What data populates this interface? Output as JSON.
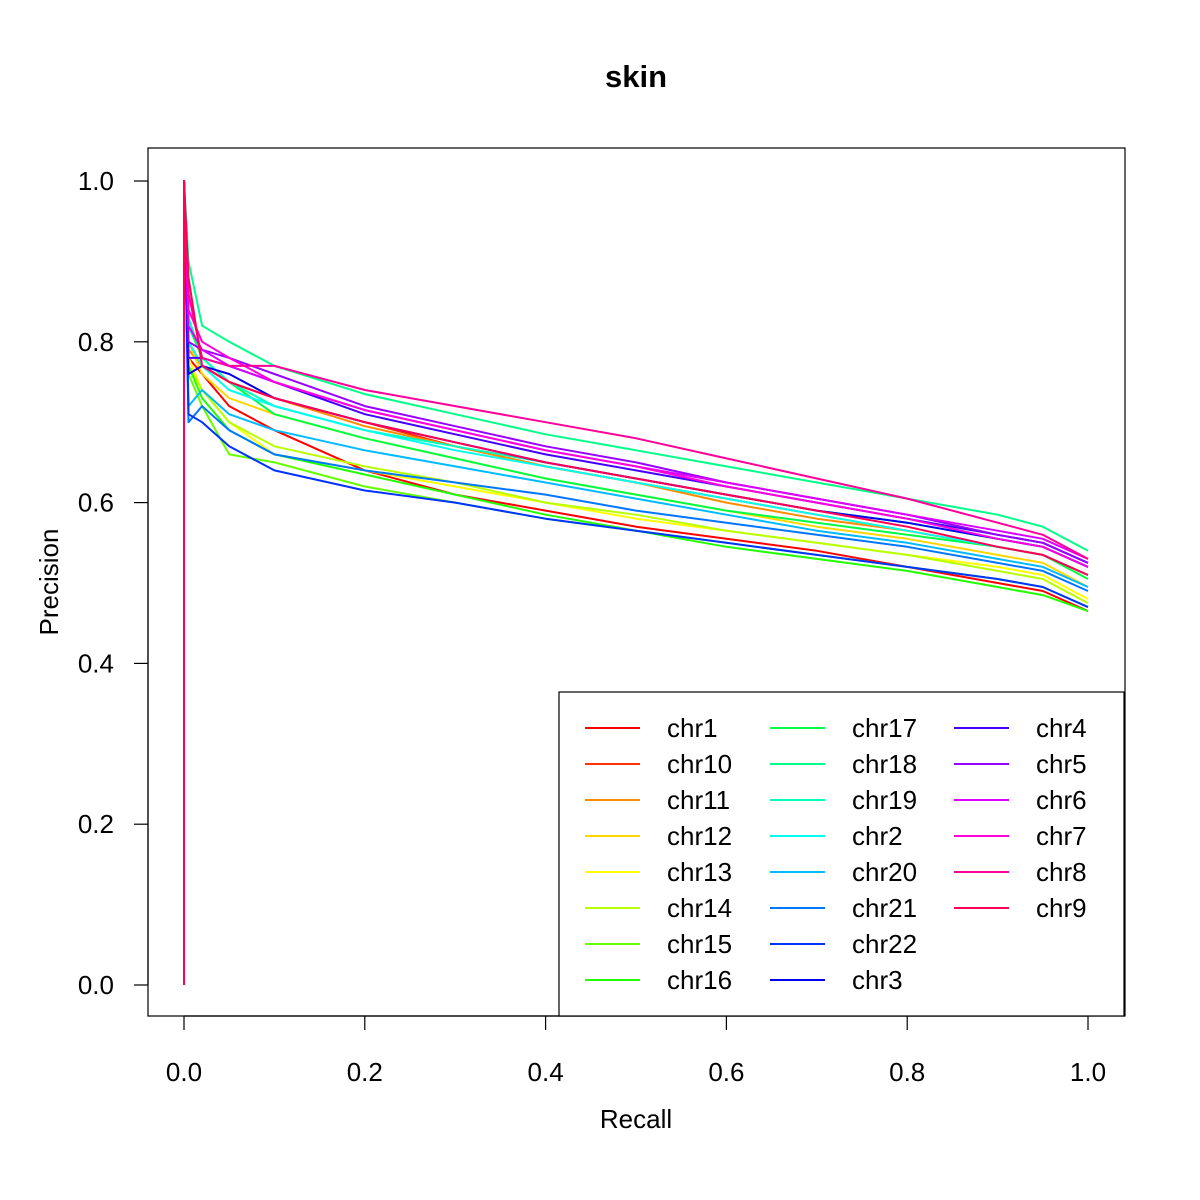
{
  "chart_data": {
    "type": "line",
    "title": "skin",
    "xlabel": "Recall",
    "ylabel": "Precision",
    "xlim": [
      0,
      1
    ],
    "ylim": [
      0,
      1
    ],
    "x_ticks": [
      "0.0",
      "0.2",
      "0.4",
      "0.6",
      "0.8",
      "1.0"
    ],
    "y_ticks": [
      "0.0",
      "0.2",
      "0.4",
      "0.6",
      "0.8",
      "1.0"
    ],
    "grid": false,
    "legend_position": "bottom-right",
    "x": [
      0.0,
      0.005,
      0.02,
      0.05,
      0.1,
      0.2,
      0.3,
      0.4,
      0.5,
      0.6,
      0.7,
      0.8,
      0.9,
      0.95,
      1.0
    ],
    "series": [
      {
        "name": "chr1",
        "color": "#FF0000",
        "values": [
          0.0,
          0.78,
          0.76,
          0.72,
          0.69,
          0.64,
          0.61,
          0.59,
          0.57,
          0.555,
          0.54,
          0.52,
          0.5,
          0.49,
          0.465
        ]
      },
      {
        "name": "chr10",
        "color": "#FF3300",
        "values": [
          0.0,
          0.8,
          0.77,
          0.75,
          0.73,
          0.7,
          0.67,
          0.645,
          0.625,
          0.605,
          0.585,
          0.565,
          0.545,
          0.535,
          0.51
        ]
      },
      {
        "name": "chr11",
        "color": "#FF8C00",
        "values": [
          0.0,
          0.79,
          0.77,
          0.75,
          0.73,
          0.695,
          0.67,
          0.645,
          0.625,
          0.6,
          0.58,
          0.565,
          0.545,
          0.535,
          0.51
        ]
      },
      {
        "name": "chr12",
        "color": "#FFD700",
        "values": [
          0.0,
          0.8,
          0.76,
          0.73,
          0.71,
          0.68,
          0.655,
          0.63,
          0.61,
          0.59,
          0.57,
          0.555,
          0.535,
          0.525,
          0.495
        ]
      },
      {
        "name": "chr13",
        "color": "#FFFF00",
        "values": [
          0.0,
          0.78,
          0.74,
          0.7,
          0.66,
          0.64,
          0.62,
          0.6,
          0.58,
          0.565,
          0.55,
          0.535,
          0.52,
          0.51,
          0.48
        ]
      },
      {
        "name": "chr14",
        "color": "#B8FF00",
        "values": [
          0.0,
          0.77,
          0.74,
          0.7,
          0.67,
          0.645,
          0.625,
          0.6,
          0.585,
          0.565,
          0.55,
          0.535,
          0.515,
          0.505,
          0.475
        ]
      },
      {
        "name": "chr15",
        "color": "#66FF00",
        "values": [
          0.0,
          0.76,
          0.72,
          0.66,
          0.65,
          0.62,
          0.6,
          0.58,
          0.565,
          0.55,
          0.535,
          0.52,
          0.505,
          0.495,
          0.47
        ]
      },
      {
        "name": "chr16",
        "color": "#22FF00",
        "values": [
          0.0,
          0.77,
          0.73,
          0.69,
          0.66,
          0.635,
          0.61,
          0.585,
          0.565,
          0.545,
          0.53,
          0.515,
          0.495,
          0.485,
          0.465
        ]
      },
      {
        "name": "chr17",
        "color": "#00FF44",
        "values": [
          0.0,
          0.82,
          0.78,
          0.75,
          0.71,
          0.68,
          0.655,
          0.63,
          0.61,
          0.59,
          0.575,
          0.56,
          0.545,
          0.535,
          0.505
        ]
      },
      {
        "name": "chr18",
        "color": "#00FF88",
        "values": [
          0.0,
          0.9,
          0.82,
          0.8,
          0.77,
          0.735,
          0.71,
          0.685,
          0.665,
          0.645,
          0.625,
          0.605,
          0.585,
          0.57,
          0.54
        ]
      },
      {
        "name": "chr19",
        "color": "#00FFBB",
        "values": [
          0.0,
          0.83,
          0.78,
          0.75,
          0.72,
          0.69,
          0.67,
          0.65,
          0.63,
          0.61,
          0.59,
          0.575,
          0.555,
          0.545,
          0.52
        ]
      },
      {
        "name": "chr2",
        "color": "#00FFEE",
        "values": [
          0.0,
          0.8,
          0.77,
          0.74,
          0.72,
          0.69,
          0.665,
          0.645,
          0.625,
          0.605,
          0.585,
          0.565,
          0.545,
          0.535,
          0.51
        ]
      },
      {
        "name": "chr20",
        "color": "#00BBFF",
        "values": [
          0.0,
          0.72,
          0.74,
          0.71,
          0.69,
          0.665,
          0.645,
          0.625,
          0.605,
          0.585,
          0.565,
          0.55,
          0.53,
          0.52,
          0.495
        ]
      },
      {
        "name": "chr21",
        "color": "#0077FF",
        "values": [
          0.0,
          0.7,
          0.72,
          0.69,
          0.66,
          0.64,
          0.625,
          0.61,
          0.59,
          0.575,
          0.56,
          0.545,
          0.525,
          0.515,
          0.49
        ]
      },
      {
        "name": "chr22",
        "color": "#0033FF",
        "values": [
          0.0,
          0.71,
          0.7,
          0.67,
          0.64,
          0.615,
          0.6,
          0.58,
          0.565,
          0.55,
          0.535,
          0.52,
          0.505,
          0.495,
          0.47
        ]
      },
      {
        "name": "chr3",
        "color": "#0000EE",
        "values": [
          0.0,
          0.76,
          0.77,
          0.76,
          0.73,
          0.7,
          0.675,
          0.65,
          0.63,
          0.61,
          0.59,
          0.575,
          0.555,
          0.545,
          0.52
        ]
      },
      {
        "name": "chr4",
        "color": "#4400FF",
        "values": [
          0.0,
          0.78,
          0.78,
          0.77,
          0.75,
          0.71,
          0.685,
          0.66,
          0.64,
          0.62,
          0.6,
          0.58,
          0.56,
          0.55,
          0.525
        ]
      },
      {
        "name": "chr5",
        "color": "#9900FF",
        "values": [
          0.0,
          0.8,
          0.79,
          0.78,
          0.76,
          0.72,
          0.695,
          0.67,
          0.65,
          0.625,
          0.605,
          0.585,
          0.56,
          0.55,
          0.525
        ]
      },
      {
        "name": "chr6",
        "color": "#DD00FF",
        "values": [
          0.0,
          0.82,
          0.79,
          0.77,
          0.75,
          0.715,
          0.69,
          0.665,
          0.645,
          0.625,
          0.605,
          0.585,
          0.565,
          0.555,
          0.53
        ]
      },
      {
        "name": "chr7",
        "color": "#FF00DD",
        "values": [
          0.0,
          0.84,
          0.8,
          0.78,
          0.75,
          0.715,
          0.69,
          0.665,
          0.645,
          0.62,
          0.6,
          0.58,
          0.555,
          0.545,
          0.52
        ]
      },
      {
        "name": "chr8",
        "color": "#FF0099",
        "values": [
          0.0,
          0.86,
          0.78,
          0.77,
          0.77,
          0.74,
          0.72,
          0.7,
          0.68,
          0.655,
          0.63,
          0.605,
          0.575,
          0.56,
          0.53
        ]
      },
      {
        "name": "chr9",
        "color": "#FF0055",
        "values": [
          0.0,
          0.88,
          0.77,
          0.75,
          0.73,
          0.7,
          0.675,
          0.65,
          0.63,
          0.61,
          0.59,
          0.57,
          0.545,
          0.535,
          0.51
        ]
      }
    ]
  }
}
